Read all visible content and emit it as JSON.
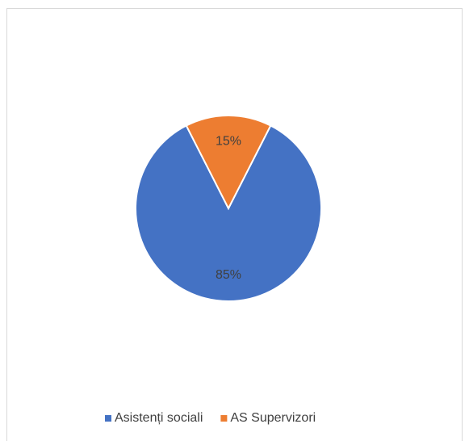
{
  "chart_data": {
    "type": "pie",
    "categories": [
      "Asistenți sociali",
      "AS Supervizori"
    ],
    "values": [
      85,
      15
    ],
    "value_labels": [
      "85%",
      "15%"
    ],
    "colors": [
      "#4472c4",
      "#ed7d31"
    ],
    "legend": "bottom"
  }
}
